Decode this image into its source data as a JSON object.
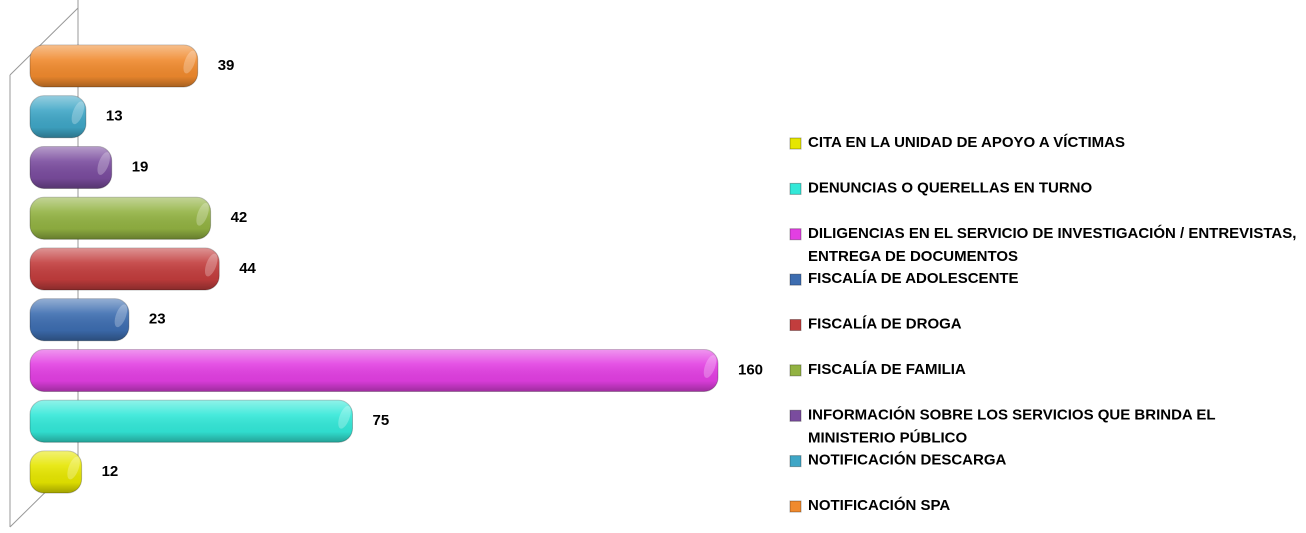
{
  "chart_data": {
    "type": "bar",
    "orientation": "horizontal",
    "categories": [
      "CITA EN LA UNIDAD DE APOYO A VÍCTIMAS",
      "DENUNCIAS O QUERELLAS EN TURNO",
      "DILIGENCIAS EN EL SERVICIO DE INVESTIGACIÓN / ENTREVISTAS, ENTREGA DE DOCUMENTOS",
      "FISCALÍA DE ADOLESCENTE",
      "FISCALÍA DE DROGA",
      "FISCALÍA DE FAMILIA",
      "INFORMACIÓN SOBRE LOS SERVICIOS QUE BRINDA EL MINISTERIO PÚBLICO",
      "NOTIFICACIÓN DESCARGA",
      "NOTIFICACIÓN SPA"
    ],
    "values": [
      12,
      75,
      160,
      23,
      44,
      42,
      19,
      13,
      39
    ],
    "colors": [
      "#e6e600",
      "#33e8d8",
      "#e23fe2",
      "#3d6db0",
      "#c23d3d",
      "#92b242",
      "#7a4c9e",
      "#3fa6c6",
      "#f08a2e"
    ],
    "legend": "right"
  }
}
